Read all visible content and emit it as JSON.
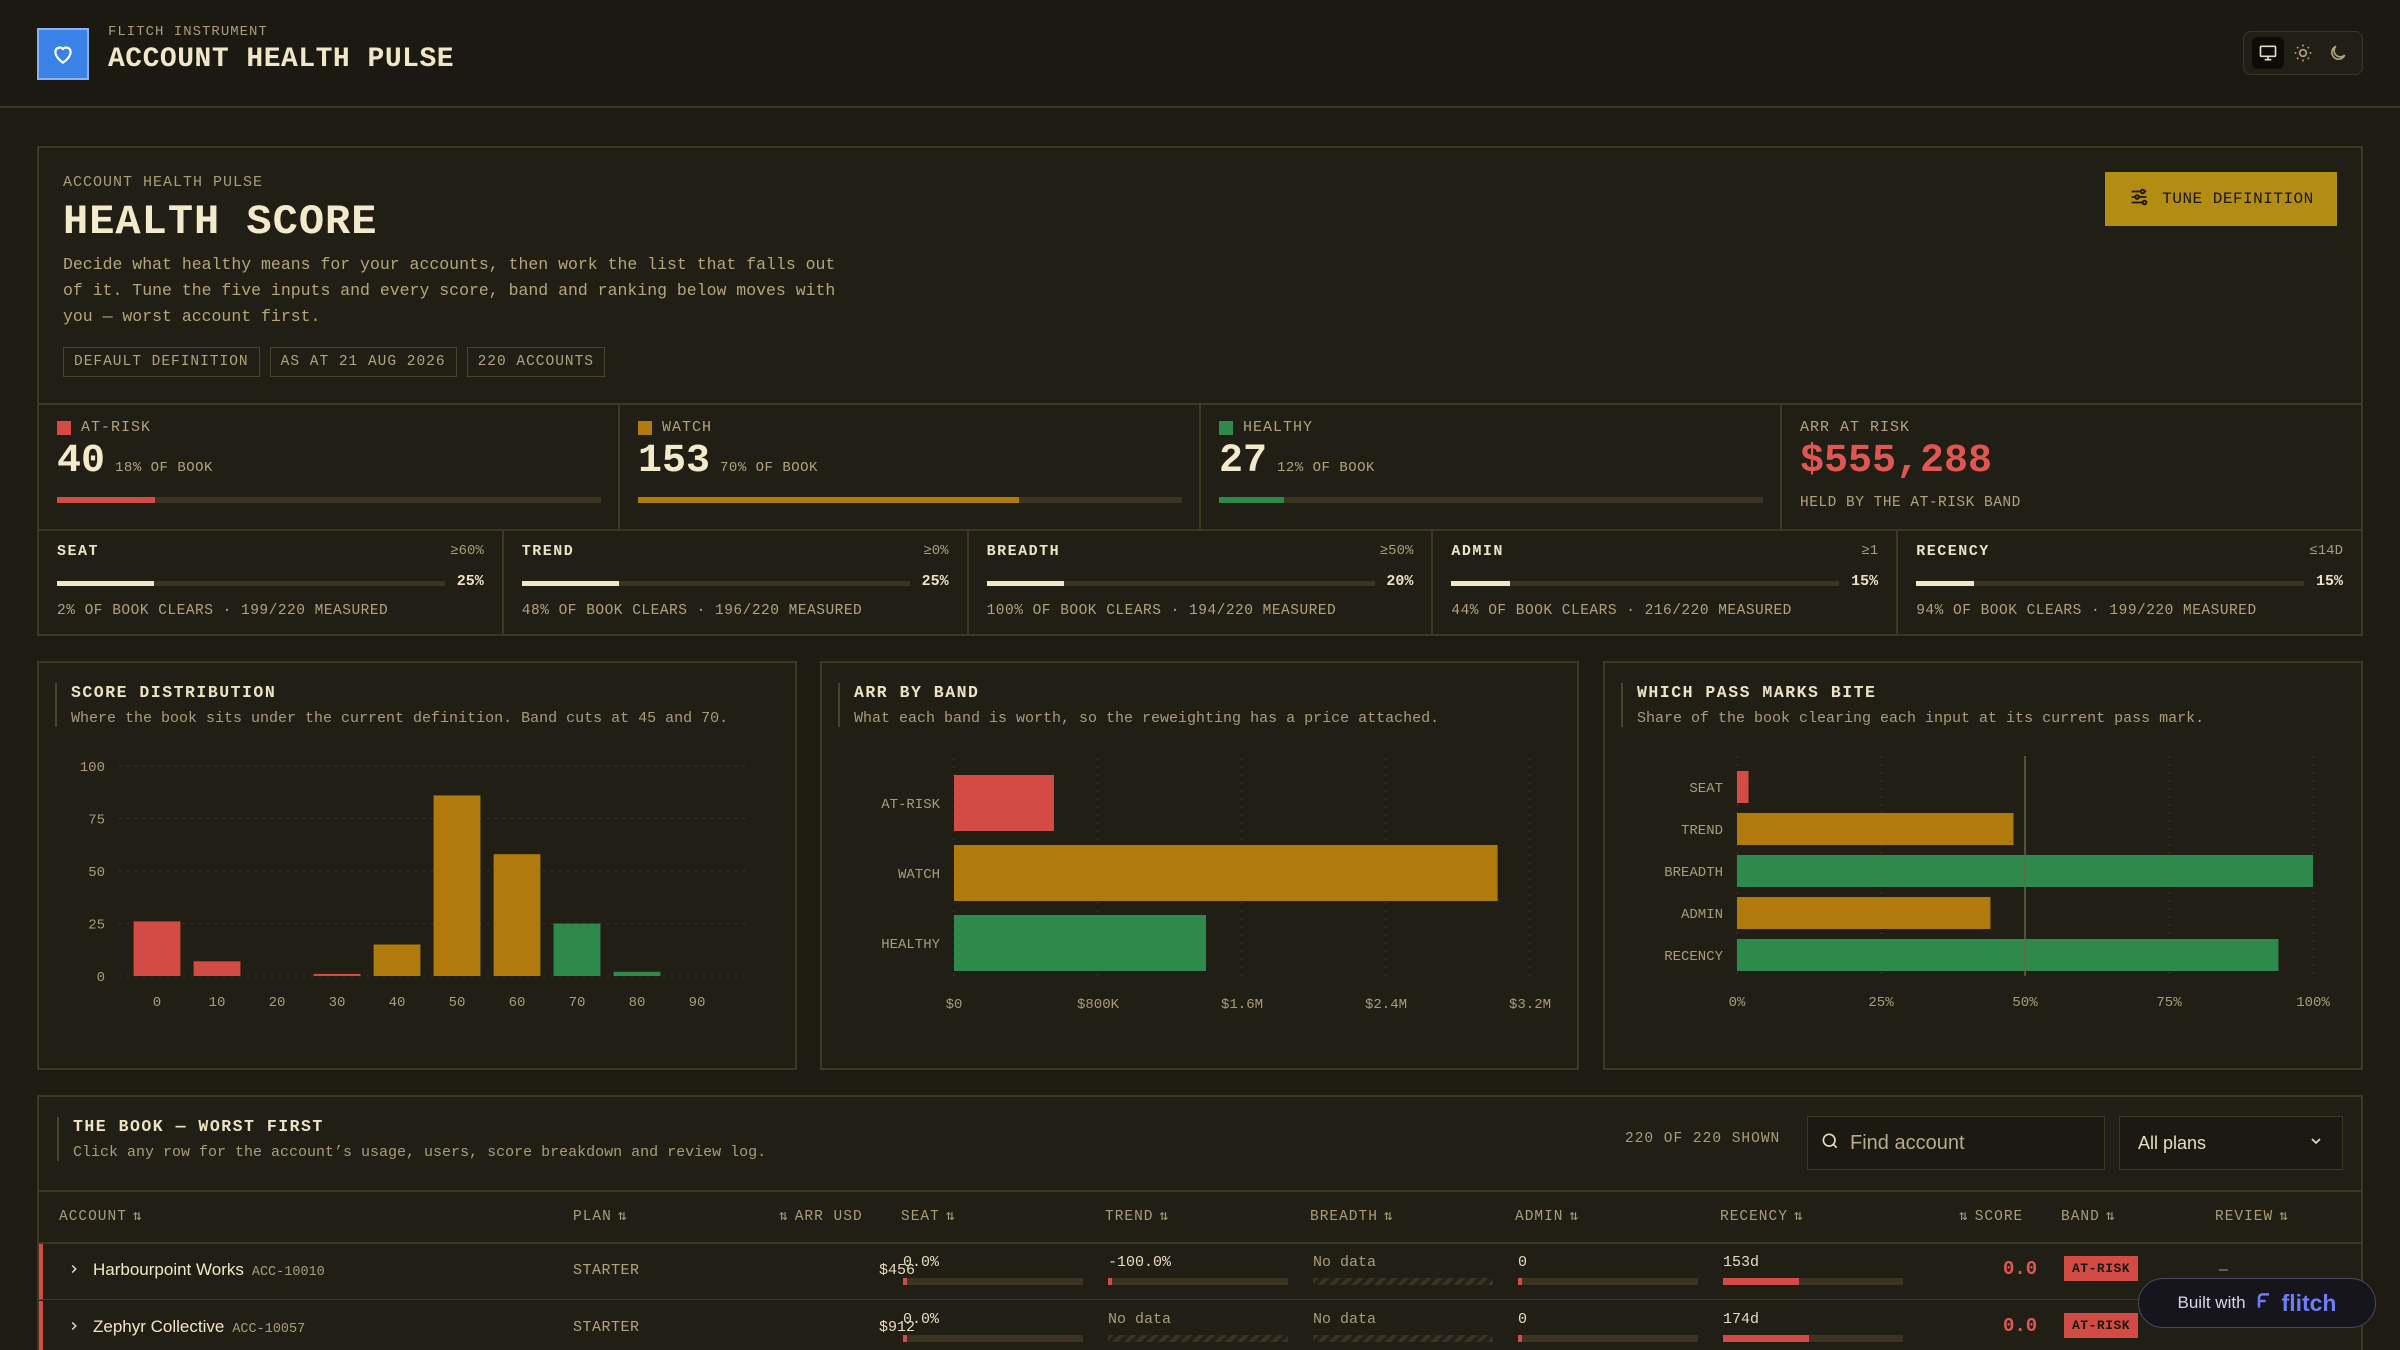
{
  "header": {
    "brand_sub": "FLITCH INSTRUMENT",
    "title": "ACCOUNT HEALTH PULSE",
    "theme_icons": [
      "monitor-icon",
      "sun-icon",
      "moon-icon"
    ]
  },
  "hero": {
    "kicker": "ACCOUNT HEALTH PULSE",
    "title": "HEALTH SCORE",
    "desc": "Decide what healthy means for your accounts, then work the list that falls out of it. Tune the five inputs and every score, band and ranking below moves with you — worst account first.",
    "chips": [
      "DEFAULT DEFINITION",
      "AS AT 21 AUG 2026",
      "220 ACCOUNTS"
    ],
    "tune_label": "TUNE DEFINITION"
  },
  "bands": [
    {
      "label": "AT-RISK",
      "count": "40",
      "pct": "18% OF BOOK",
      "fill": 0.18,
      "color": "#d34b45"
    },
    {
      "label": "WATCH",
      "count": "153",
      "pct": "70% OF BOOK",
      "fill": 0.7,
      "color": "#b07a0c"
    },
    {
      "label": "HEALTHY",
      "count": "27",
      "pct": "12% OF BOOK",
      "fill": 0.12,
      "color": "#2e8a4a"
    }
  ],
  "arr_at_risk": {
    "label": "ARR AT RISK",
    "value": "$555,288",
    "sub": "HELD BY THE AT-RISK BAND"
  },
  "inputs": [
    {
      "name": "SEAT",
      "mark": "≥60%",
      "weight": "25%",
      "fill": 0.25,
      "foot": "2% OF BOOK CLEARS · 199/220 MEASURED"
    },
    {
      "name": "TREND",
      "mark": "≥0%",
      "weight": "25%",
      "fill": 0.25,
      "foot": "48% OF BOOK CLEARS · 196/220 MEASURED"
    },
    {
      "name": "BREADTH",
      "mark": "≥50%",
      "weight": "20%",
      "fill": 0.2,
      "foot": "100% OF BOOK CLEARS · 194/220 MEASURED"
    },
    {
      "name": "ADMIN",
      "mark": "≥1",
      "weight": "15%",
      "fill": 0.15,
      "foot": "44% OF BOOK CLEARS · 216/220 MEASURED"
    },
    {
      "name": "RECENCY",
      "mark": "≤14D",
      "weight": "15%",
      "fill": 0.15,
      "foot": "94% OF BOOK CLEARS · 199/220 MEASURED"
    }
  ],
  "charts": {
    "dist": {
      "title": "SCORE DISTRIBUTION",
      "sub": "Where the book sits under the current definition. Band cuts at 45 and 70."
    },
    "arr": {
      "title": "ARR BY BAND",
      "sub": "What each band is worth, so the reweighting has a price attached."
    },
    "pass": {
      "title": "WHICH PASS MARKS BITE",
      "sub": "Share of the book clearing each input at its current pass mark."
    }
  },
  "chart_data": [
    {
      "type": "bar",
      "title": "SCORE DISTRIBUTION",
      "categories": [
        "0",
        "10",
        "20",
        "30",
        "40",
        "50",
        "60",
        "70",
        "80",
        "90"
      ],
      "values": [
        26,
        7,
        0,
        1,
        15,
        86,
        58,
        25,
        2,
        0
      ],
      "colors": [
        "#d34b45",
        "#d34b45",
        "#d34b45",
        "#d34b45",
        "#b07a0c",
        "#b07a0c",
        "#b07a0c",
        "#2e8a4a",
        "#2e8a4a",
        "#2e8a4a"
      ],
      "yticks": [
        "0",
        "25",
        "50",
        "75",
        "100"
      ],
      "ylim": [
        0,
        100
      ],
      "grid": true
    },
    {
      "type": "bar",
      "orientation": "horizontal",
      "title": "ARR BY BAND",
      "categories": [
        "AT-RISK",
        "WATCH",
        "HEALTHY"
      ],
      "values": [
        555288,
        3020000,
        1400000
      ],
      "colors": [
        "#d34b45",
        "#b07a0c",
        "#2e8a4a"
      ],
      "xticks": [
        "$0",
        "$800K",
        "$1.6M",
        "$2.4M",
        "$3.2M"
      ],
      "xlim": [
        0,
        3200000
      ],
      "grid": true
    },
    {
      "type": "bar",
      "orientation": "horizontal",
      "title": "WHICH PASS MARKS BITE",
      "categories": [
        "SEAT",
        "TREND",
        "BREADTH",
        "ADMIN",
        "RECENCY"
      ],
      "values": [
        2,
        48,
        100,
        44,
        94
      ],
      "colors": [
        "#d34b45",
        "#b07a0c",
        "#2e8a4a",
        "#b07a0c",
        "#2e8a4a"
      ],
      "xticks": [
        "0%",
        "25%",
        "50%",
        "75%",
        "100%"
      ],
      "xlim": [
        0,
        100
      ],
      "grid": true
    }
  ],
  "table": {
    "title": "THE BOOK — WORST FIRST",
    "sub": "Click any row for the account’s usage, users, score breakdown and review log.",
    "shown": "220 OF 220 SHOWN",
    "search_placeholder": "Find account",
    "plan_filter": "All plans",
    "columns": [
      "ACCOUNT",
      "PLAN",
      "ARR USD",
      "SEAT",
      "TREND",
      "BREADTH",
      "ADMIN",
      "RECENCY",
      "SCORE",
      "BAND",
      "REVIEW"
    ],
    "rows": [
      {
        "name": "Harbourpoint Works",
        "id": "ACC-10010",
        "plan": "STARTER",
        "arr": "$456",
        "seat": "0.0%",
        "seat_fill": 0.02,
        "trend": "-100.0%",
        "trend_fill": 0.02,
        "breadth": "No data",
        "admin": "0",
        "admin_fill": 0.02,
        "recency": "153d",
        "recency_fill": 0.42,
        "score": "0.0",
        "band": "AT-RISK",
        "review": "—"
      },
      {
        "name": "Zephyr Collective",
        "id": "ACC-10057",
        "plan": "STARTER",
        "arr": "$912",
        "seat": "0.0%",
        "seat_fill": 0.02,
        "trend": "No data",
        "trend_fill": 0,
        "breadth": "No data",
        "admin": "0",
        "admin_fill": 0.02,
        "recency": "174d",
        "recency_fill": 0.48,
        "score": "0.0",
        "band": "AT-RISK",
        "review": "—"
      }
    ]
  },
  "built_with": {
    "prefix": "Built with",
    "brand": "flitch"
  }
}
